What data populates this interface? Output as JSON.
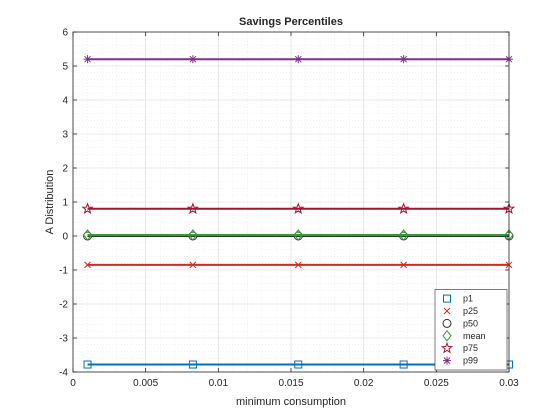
{
  "chart_data": {
    "type": "line",
    "title": "Savings Percentiles",
    "xlabel": "minimum consumption",
    "ylabel": "A Distribution",
    "xlim": [
      0,
      0.03
    ],
    "ylim": [
      -4,
      6
    ],
    "xticks": [
      0,
      0.005,
      0.01,
      0.015,
      0.02,
      0.025,
      0.03
    ],
    "xtick_labels": [
      "0",
      "0.005",
      "0.01",
      "0.015",
      "0.02",
      "0.025",
      "0.03"
    ],
    "yticks": [
      -4,
      -3,
      -2,
      -1,
      0,
      1,
      2,
      3,
      4,
      5,
      6
    ],
    "ytick_labels": [
      "-4",
      "-3",
      "-2",
      "-1",
      "0",
      "1",
      "2",
      "3",
      "4",
      "5",
      "6"
    ],
    "grid": true,
    "legend_position": "bottom-right",
    "x": [
      0.001,
      0.00825,
      0.0155,
      0.02275,
      0.03
    ],
    "series": [
      {
        "name": "p1",
        "marker": "square",
        "color": "#0072BD",
        "values": [
          -3.78,
          -3.78,
          -3.78,
          -3.78,
          -3.78
        ]
      },
      {
        "name": "p25",
        "marker": "x",
        "color": "#D62728",
        "values": [
          -0.85,
          -0.85,
          -0.85,
          -0.85,
          -0.85
        ]
      },
      {
        "name": "p50",
        "marker": "circle",
        "color": "#333333",
        "values": [
          0.0,
          0.0,
          0.0,
          0.0,
          0.0
        ]
      },
      {
        "name": "mean",
        "marker": "diamond",
        "color": "#2CA02C",
        "values": [
          0.03,
          0.03,
          0.03,
          0.03,
          0.03
        ]
      },
      {
        "name": "p75",
        "marker": "pentagram",
        "color": "#A2142F",
        "values": [
          0.8,
          0.8,
          0.8,
          0.8,
          0.8
        ]
      },
      {
        "name": "p99",
        "marker": "asterisk",
        "color": "#7E2F8E",
        "values": [
          5.2,
          5.2,
          5.2,
          5.2,
          5.2
        ]
      }
    ]
  }
}
